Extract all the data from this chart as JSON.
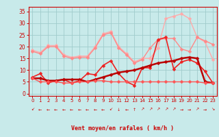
{
  "bg_color": "#c8eaea",
  "grid_color": "#a0cccc",
  "text_color": "#cc0000",
  "xlabel": "Vent moyen/en rafales ( km/h )",
  "x_ticks": [
    0,
    1,
    2,
    3,
    4,
    5,
    6,
    7,
    8,
    9,
    10,
    11,
    12,
    13,
    14,
    15,
    16,
    17,
    18,
    19,
    20,
    21,
    22,
    23
  ],
  "ylim": [
    -1,
    37
  ],
  "yticks": [
    0,
    5,
    10,
    15,
    20,
    25,
    30,
    35
  ],
  "lines": [
    {
      "color": "#ffaaaa",
      "lw": 1.0,
      "marker": "D",
      "ms": 2.5,
      "y": [
        18.5,
        17.5,
        20.5,
        20.5,
        16.5,
        15.5,
        16,
        16,
        20,
        25.5,
        26.5,
        20,
        17,
        13.5,
        15,
        15,
        19.5,
        32,
        33,
        34,
        32,
        24,
        22,
        14.5
      ]
    },
    {
      "color": "#ff8888",
      "lw": 1.0,
      "marker": "D",
      "ms": 2.5,
      "y": [
        18,
        17,
        20,
        20,
        16,
        15,
        15.5,
        15.5,
        19.5,
        25,
        26,
        19.5,
        16.5,
        13,
        14.5,
        19.5,
        23,
        23.5,
        23.5,
        19,
        18,
        24,
        22.5,
        21
      ]
    },
    {
      "color": "#ee2222",
      "lw": 1.2,
      "marker": "D",
      "ms": 2.5,
      "y": [
        7,
        8.5,
        4.5,
        5.5,
        6,
        4.5,
        5.5,
        8.5,
        8,
        12,
        14,
        8.5,
        5,
        3.5,
        11,
        11,
        23,
        24,
        10.5,
        13.5,
        14.5,
        13,
        9.5,
        4.5
      ]
    },
    {
      "color": "#bb0000",
      "lw": 1.8,
      "marker": "D",
      "ms": 2.5,
      "y": [
        6.5,
        6.5,
        5.5,
        5.5,
        6,
        6,
        6,
        5,
        6,
        7,
        8,
        9,
        9.5,
        10,
        11,
        12,
        13,
        13.5,
        14,
        15,
        15.5,
        15,
        5,
        4.5
      ]
    },
    {
      "color": "#ff5555",
      "lw": 1.0,
      "marker": "D",
      "ms": 2.5,
      "y": [
        6.5,
        5.0,
        5.0,
        5.0,
        4.5,
        4.5,
        5.0,
        5.0,
        5.5,
        5.5,
        5.0,
        5.0,
        5.0,
        5.0,
        5.0,
        5.0,
        5.0,
        5.0,
        5.0,
        5.0,
        5.0,
        5.0,
        4.5,
        4.5
      ]
    }
  ],
  "arrows": [
    "↙",
    "←",
    "←",
    "←",
    "←",
    "←",
    "←",
    "←",
    "←",
    "←",
    "↙",
    "↓",
    "←",
    "↑",
    "↗",
    "↗",
    "↗",
    "↗",
    "↗",
    "→",
    "→",
    "↗",
    "→",
    "↘"
  ]
}
